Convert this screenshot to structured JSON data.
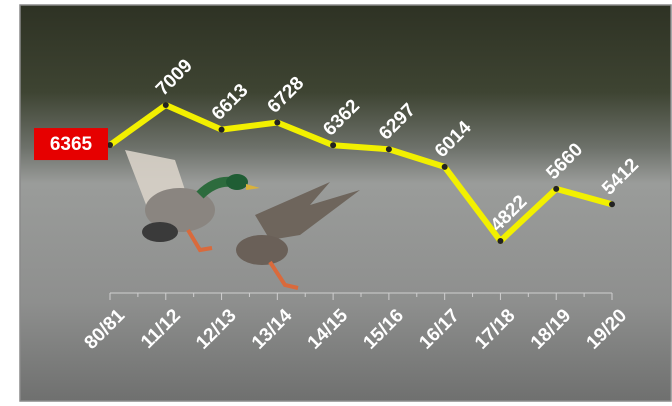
{
  "chart_data": {
    "type": "line",
    "categories": [
      "80/81",
      "11/12",
      "12/13",
      "13/14",
      "14/15",
      "15/16",
      "16/17",
      "17/18",
      "18/19",
      "19/20"
    ],
    "values": [
      6365,
      7009,
      6613,
      6728,
      6362,
      6297,
      6014,
      4822,
      5660,
      5412
    ],
    "color": "#f2f000"
  }
}
